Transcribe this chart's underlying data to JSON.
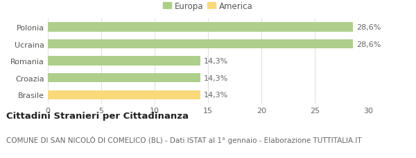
{
  "categories": [
    "Polonia",
    "Ucraina",
    "Romania",
    "Croazia",
    "Brasile"
  ],
  "values": [
    28.6,
    28.6,
    14.3,
    14.3,
    14.3
  ],
  "bar_colors": [
    "#aecf8b",
    "#aecf8b",
    "#aecf8b",
    "#aecf8b",
    "#f9d97c"
  ],
  "bar_labels": [
    "28,6%",
    "28,6%",
    "14,3%",
    "14,3%",
    "14,3%"
  ],
  "legend_labels": [
    "Europa",
    "America"
  ],
  "legend_colors": [
    "#aecf8b",
    "#f9d97c"
  ],
  "xlim": [
    0,
    30
  ],
  "xticks": [
    0,
    5,
    10,
    15,
    20,
    25,
    30
  ],
  "title_bold": "Cittadini Stranieri per Cittadinanza",
  "subtitle": "COMUNE DI SAN NICOLÒ DI COMELICO (BL) - Dati ISTAT al 1° gennaio - Elaborazione TUTTITALIA.IT",
  "background_color": "#ffffff",
  "grid_color": "#e0e0e0",
  "bar_edge_color": "none",
  "title_fontsize": 9.5,
  "subtitle_fontsize": 7.5,
  "label_fontsize": 8,
  "tick_fontsize": 8,
  "legend_fontsize": 8.5,
  "bar_height": 0.55
}
